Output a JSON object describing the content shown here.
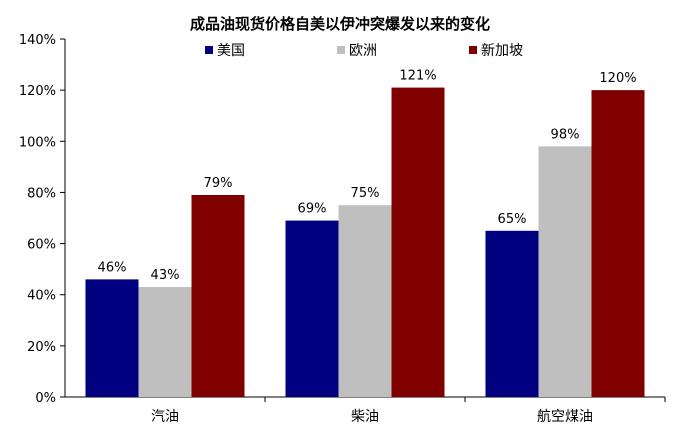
{
  "chart_data": {
    "type": "bar",
    "title": "成品油现货价格自美以伊冲突爆发以来的变化",
    "categories": [
      "汽油",
      "柴油",
      "航空煤油"
    ],
    "series": [
      {
        "name": "美国",
        "color": "#000080",
        "values": [
          46,
          69,
          65
        ],
        "labels": [
          "46%",
          "69%",
          "65%"
        ]
      },
      {
        "name": "欧洲",
        "color": "#BFBFBF",
        "values": [
          43,
          75,
          98
        ],
        "labels": [
          "43%",
          "75%",
          "98%"
        ]
      },
      {
        "name": "新加坡",
        "color": "#800000",
        "values": [
          79,
          121,
          120
        ],
        "labels": [
          "79%",
          "121%",
          "120%"
        ]
      }
    ],
    "yticks": [
      "0%",
      "20%",
      "40%",
      "60%",
      "80%",
      "100%",
      "120%",
      "140%"
    ],
    "ylim": [
      0,
      140
    ],
    "grid": false,
    "legend": "top"
  }
}
